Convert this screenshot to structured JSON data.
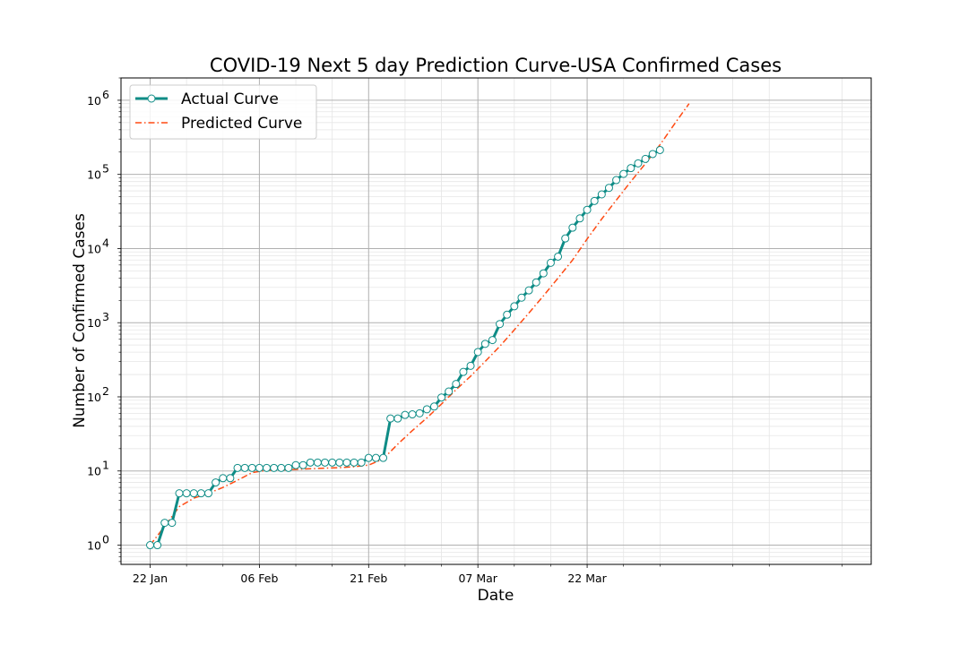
{
  "chart_data": {
    "type": "line",
    "title": "COVID-19 Next 5 day Prediction Curve-USA Confirmed Cases",
    "xlabel": "Date",
    "ylabel": "Number of Confirmed Cases",
    "y_scale": "log",
    "ylim": [
      0.55,
      2000000
    ],
    "xlim": [
      "2020-01-18",
      "2020-04-30"
    ],
    "x_ticks": [
      {
        "date": "2020-01-22",
        "label": "22 Jan"
      },
      {
        "date": "2020-02-06",
        "label": "06 Feb"
      },
      {
        "date": "2020-02-21",
        "label": "21 Feb"
      },
      {
        "date": "2020-03-07",
        "label": "07 Mar"
      },
      {
        "date": "2020-03-22",
        "label": "22 Mar"
      }
    ],
    "y_ticks": [
      {
        "value": 1,
        "base": "10",
        "exp": "0"
      },
      {
        "value": 10,
        "base": "10",
        "exp": "1"
      },
      {
        "value": 100,
        "base": "10",
        "exp": "2"
      },
      {
        "value": 1000,
        "base": "10",
        "exp": "3"
      },
      {
        "value": 10000,
        "base": "10",
        "exp": "4"
      },
      {
        "value": 100000,
        "base": "10",
        "exp": "5"
      },
      {
        "value": 1000000,
        "base": "10",
        "exp": "6"
      }
    ],
    "grid": true,
    "legend_position": "upper-left",
    "series": [
      {
        "name": "Actual Curve",
        "style": "solid line with hollow circle markers",
        "color": "#0e8c86",
        "x": [
          "2020-01-22",
          "2020-01-23",
          "2020-01-24",
          "2020-01-25",
          "2020-01-26",
          "2020-01-27",
          "2020-01-28",
          "2020-01-29",
          "2020-01-30",
          "2020-01-31",
          "2020-02-01",
          "2020-02-02",
          "2020-02-03",
          "2020-02-04",
          "2020-02-05",
          "2020-02-06",
          "2020-02-07",
          "2020-02-08",
          "2020-02-09",
          "2020-02-10",
          "2020-02-11",
          "2020-02-12",
          "2020-02-13",
          "2020-02-14",
          "2020-02-15",
          "2020-02-16",
          "2020-02-17",
          "2020-02-18",
          "2020-02-19",
          "2020-02-20",
          "2020-02-21",
          "2020-02-22",
          "2020-02-23",
          "2020-02-24",
          "2020-02-25",
          "2020-02-26",
          "2020-02-27",
          "2020-02-28",
          "2020-02-29",
          "2020-03-01",
          "2020-03-02",
          "2020-03-03",
          "2020-03-04",
          "2020-03-05",
          "2020-03-06",
          "2020-03-07",
          "2020-03-08",
          "2020-03-09",
          "2020-03-10",
          "2020-03-11",
          "2020-03-12",
          "2020-03-13",
          "2020-03-14",
          "2020-03-15",
          "2020-03-16",
          "2020-03-17",
          "2020-03-18",
          "2020-03-19",
          "2020-03-20",
          "2020-03-21",
          "2020-03-22",
          "2020-03-23",
          "2020-03-24",
          "2020-03-25",
          "2020-03-26",
          "2020-03-27",
          "2020-03-28",
          "2020-03-29",
          "2020-03-30",
          "2020-03-31",
          "2020-04-01"
        ],
        "y": [
          1,
          1,
          2,
          2,
          5,
          5,
          5,
          5,
          5,
          7,
          8,
          8,
          11,
          11,
          11,
          11,
          11,
          11,
          11,
          11,
          12,
          12,
          13,
          13,
          13,
          13,
          13,
          13,
          13,
          13,
          15,
          15,
          15,
          51,
          51,
          57,
          58,
          60,
          68,
          74,
          98,
          118,
          149,
          217,
          262,
          402,
          518,
          583,
          959,
          1281,
          1663,
          2179,
          2727,
          3499,
          4632,
          6421,
          7786,
          13680,
          19101,
          25493,
          33276,
          43847,
          53740,
          65778,
          83836,
          101657,
          121478,
          140886,
          161807,
          188172,
          213372
        ]
      },
      {
        "name": "Predicted Curve",
        "style": "dash-dot line",
        "color": "#ff4a12",
        "x": [
          "2020-01-22",
          "2020-01-24",
          "2020-01-26",
          "2020-01-28",
          "2020-01-30",
          "2020-02-01",
          "2020-02-03",
          "2020-02-05",
          "2020-02-07",
          "2020-02-09",
          "2020-02-11",
          "2020-02-13",
          "2020-02-15",
          "2020-02-17",
          "2020-02-19",
          "2020-02-21",
          "2020-02-23",
          "2020-02-25",
          "2020-02-27",
          "2020-02-29",
          "2020-03-02",
          "2020-03-04",
          "2020-03-06",
          "2020-03-08",
          "2020-03-10",
          "2020-03-12",
          "2020-03-14",
          "2020-03-16",
          "2020-03-18",
          "2020-03-20",
          "2020-03-22",
          "2020-03-24",
          "2020-03-26",
          "2020-03-28",
          "2020-03-30",
          "2020-04-01",
          "2020-04-03",
          "2020-04-05"
        ],
        "y": [
          1,
          1.8,
          3.3,
          4.3,
          5.0,
          6.0,
          7.5,
          9.5,
          10.2,
          10.3,
          10.5,
          10.7,
          10.9,
          11.1,
          11.4,
          12.0,
          14.5,
          23,
          35,
          52,
          80,
          125,
          190,
          300,
          480,
          800,
          1350,
          2300,
          4000,
          7000,
          13500,
          25000,
          45000,
          80000,
          140000,
          250000,
          480000,
          900000
        ]
      }
    ]
  }
}
